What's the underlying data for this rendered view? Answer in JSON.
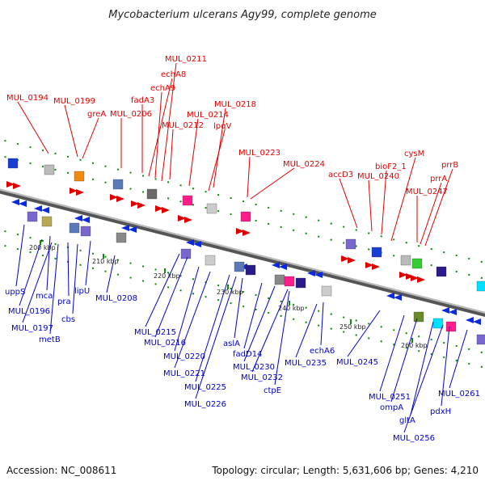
{
  "title": "Mycobacterium ulcerans Agy99, complete genome",
  "footer": {
    "accession": "Accession: NC_008611",
    "summary": "Topology: circular; Length: 5,631,606 bp; Genes: 4,210"
  },
  "colors": {
    "forward_label": "#e00000",
    "reverse_label": "#0000cc",
    "backbone": "#888888",
    "tick": "#0a8a0a"
  },
  "forward_genes": [
    "MUL_0194",
    "MUL_0199",
    "greA",
    "MUL_0206",
    "fadA3",
    "echA8",
    "echA9",
    "MUL_0211",
    "MUL_0212",
    "MUL_0214",
    "lpqV",
    "MUL_0218",
    "MUL_0223",
    "MUL_0224",
    "accD3",
    "MUL_0240",
    "bioF2_1",
    "cysM",
    "MUL_0247",
    "prrA",
    "prrB"
  ],
  "reverse_genes": [
    "uppS",
    "mca",
    "MUL_0196",
    "MUL_0197",
    "metB",
    "pra",
    "cbs",
    "lipU",
    "MUL_0208",
    "MUL_0215",
    "MUL_0216",
    "MUL_0220",
    "MUL_0221",
    "MUL_0225",
    "MUL_0226",
    "aslA",
    "fadD14",
    "MUL_0230",
    "MUL_0232",
    "ctpE",
    "echA6",
    "MUL_0235",
    "MUL_0245",
    "MUL_0251",
    "ompA",
    "gltA",
    "MUL_0256",
    "pdxH",
    "MUL_0261"
  ],
  "scale_ticks": [
    "200 kbp",
    "210 kbp",
    "220 kbp",
    "230 kbp",
    "240 kbp",
    "250 kbp",
    "260 kbp"
  ]
}
